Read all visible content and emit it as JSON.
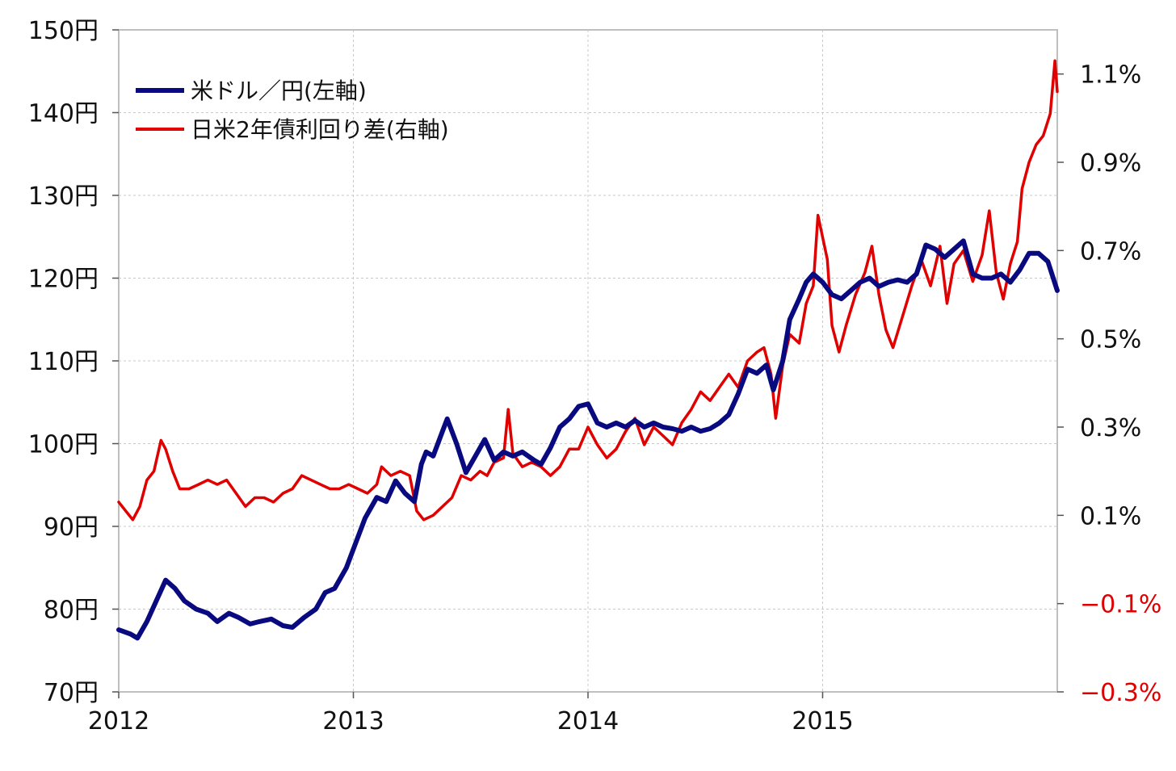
{
  "chart_data": {
    "type": "line",
    "x_ticks": [
      "2012",
      "2013",
      "2014",
      "2015"
    ],
    "x_range": [
      2012.0,
      2016.0
    ],
    "left_axis": {
      "ylim": [
        70,
        150
      ],
      "ticks": [
        {
          "value": 70,
          "label": "70円"
        },
        {
          "value": 80,
          "label": "80円"
        },
        {
          "value": 90,
          "label": "90円"
        },
        {
          "value": 100,
          "label": "100円"
        },
        {
          "value": 110,
          "label": "110円"
        },
        {
          "value": 120,
          "label": "120円"
        },
        {
          "value": 130,
          "label": "130円"
        },
        {
          "value": 140,
          "label": "140円"
        },
        {
          "value": 150,
          "label": "150円"
        }
      ]
    },
    "right_axis": {
      "ylim": [
        -0.3,
        1.2
      ],
      "ticks": [
        {
          "value": -0.3,
          "label": "−0.3%",
          "color": "#e00000"
        },
        {
          "value": -0.1,
          "label": "−0.1%",
          "color": "#e00000"
        },
        {
          "value": 0.1,
          "label": "0.1%",
          "color": "#111111"
        },
        {
          "value": 0.3,
          "label": "0.3%",
          "color": "#111111"
        },
        {
          "value": 0.5,
          "label": "0.5%",
          "color": "#111111"
        },
        {
          "value": 0.7,
          "label": "0.7%",
          "color": "#111111"
        },
        {
          "value": 0.9,
          "label": "0.9%",
          "color": "#111111"
        },
        {
          "value": 1.1,
          "label": "1.1%",
          "color": "#111111"
        }
      ]
    },
    "grid": true,
    "legend": "top-left",
    "series": [
      {
        "name": "米ドル／円(左軸)",
        "axis": "left",
        "color": "#0a0a80",
        "points": [
          [
            2012.0,
            77.5
          ],
          [
            2012.05,
            77.0
          ],
          [
            2012.08,
            76.5
          ],
          [
            2012.12,
            78.5
          ],
          [
            2012.16,
            81.0
          ],
          [
            2012.2,
            83.5
          ],
          [
            2012.24,
            82.5
          ],
          [
            2012.28,
            81.0
          ],
          [
            2012.33,
            80.0
          ],
          [
            2012.38,
            79.5
          ],
          [
            2012.42,
            78.5
          ],
          [
            2012.47,
            79.5
          ],
          [
            2012.51,
            79.0
          ],
          [
            2012.56,
            78.2
          ],
          [
            2012.6,
            78.5
          ],
          [
            2012.65,
            78.8
          ],
          [
            2012.7,
            78.0
          ],
          [
            2012.74,
            77.8
          ],
          [
            2012.79,
            79.0
          ],
          [
            2012.84,
            80.0
          ],
          [
            2012.88,
            82.0
          ],
          [
            2012.92,
            82.5
          ],
          [
            2012.97,
            85.0
          ],
          [
            2013.01,
            88.0
          ],
          [
            2013.05,
            91.0
          ],
          [
            2013.1,
            93.5
          ],
          [
            2013.14,
            93.0
          ],
          [
            2013.18,
            95.5
          ],
          [
            2013.22,
            94.0
          ],
          [
            2013.26,
            93.0
          ],
          [
            2013.29,
            97.5
          ],
          [
            2013.31,
            99.0
          ],
          [
            2013.34,
            98.5
          ],
          [
            2013.38,
            101.5
          ],
          [
            2013.4,
            103.0
          ],
          [
            2013.44,
            100.0
          ],
          [
            2013.48,
            96.5
          ],
          [
            2013.52,
            98.5
          ],
          [
            2013.56,
            100.5
          ],
          [
            2013.6,
            98.0
          ],
          [
            2013.64,
            99.0
          ],
          [
            2013.68,
            98.5
          ],
          [
            2013.72,
            99.0
          ],
          [
            2013.77,
            98.0
          ],
          [
            2013.8,
            97.5
          ],
          [
            2013.84,
            99.5
          ],
          [
            2013.88,
            102.0
          ],
          [
            2013.92,
            103.0
          ],
          [
            2013.96,
            104.5
          ],
          [
            2014.0,
            104.8
          ],
          [
            2014.04,
            102.5
          ],
          [
            2014.08,
            102.0
          ],
          [
            2014.12,
            102.5
          ],
          [
            2014.16,
            102.0
          ],
          [
            2014.2,
            102.8
          ],
          [
            2014.24,
            102.0
          ],
          [
            2014.28,
            102.5
          ],
          [
            2014.32,
            102.0
          ],
          [
            2014.36,
            101.8
          ],
          [
            2014.4,
            101.5
          ],
          [
            2014.44,
            102.0
          ],
          [
            2014.48,
            101.5
          ],
          [
            2014.52,
            101.8
          ],
          [
            2014.56,
            102.5
          ],
          [
            2014.6,
            103.5
          ],
          [
            2014.64,
            106.0
          ],
          [
            2014.68,
            109.0
          ],
          [
            2014.72,
            108.5
          ],
          [
            2014.76,
            109.5
          ],
          [
            2014.79,
            106.5
          ],
          [
            2014.83,
            110.0
          ],
          [
            2014.86,
            115.0
          ],
          [
            2014.9,
            117.5
          ],
          [
            2014.93,
            119.5
          ],
          [
            2014.96,
            120.5
          ],
          [
            2015.0,
            119.5
          ],
          [
            2015.04,
            118.0
          ],
          [
            2015.08,
            117.5
          ],
          [
            2015.12,
            118.5
          ],
          [
            2015.16,
            119.5
          ],
          [
            2015.2,
            120.0
          ],
          [
            2015.24,
            119.0
          ],
          [
            2015.28,
            119.5
          ],
          [
            2015.32,
            119.8
          ],
          [
            2015.36,
            119.5
          ],
          [
            2015.4,
            120.5
          ],
          [
            2015.44,
            124.0
          ],
          [
            2015.48,
            123.5
          ],
          [
            2015.52,
            122.5
          ],
          [
            2015.56,
            123.5
          ],
          [
            2015.6,
            124.5
          ],
          [
            2015.64,
            120.5
          ],
          [
            2015.68,
            120.0
          ],
          [
            2015.72,
            120.0
          ],
          [
            2015.76,
            120.5
          ],
          [
            2015.8,
            119.5
          ],
          [
            2015.84,
            121.0
          ],
          [
            2015.88,
            123.0
          ],
          [
            2015.92,
            123.0
          ],
          [
            2015.96,
            122.0
          ],
          [
            2016.0,
            118.5
          ]
        ]
      },
      {
        "name": "日米2年債利回り差(右軸)",
        "axis": "right",
        "color": "#e00000",
        "points": [
          [
            2012.0,
            0.13
          ],
          [
            2012.03,
            0.11
          ],
          [
            2012.06,
            0.09
          ],
          [
            2012.09,
            0.12
          ],
          [
            2012.12,
            0.18
          ],
          [
            2012.15,
            0.2
          ],
          [
            2012.18,
            0.27
          ],
          [
            2012.2,
            0.25
          ],
          [
            2012.23,
            0.2
          ],
          [
            2012.26,
            0.16
          ],
          [
            2012.3,
            0.16
          ],
          [
            2012.34,
            0.17
          ],
          [
            2012.38,
            0.18
          ],
          [
            2012.42,
            0.17
          ],
          [
            2012.46,
            0.18
          ],
          [
            2012.5,
            0.15
          ],
          [
            2012.54,
            0.12
          ],
          [
            2012.58,
            0.14
          ],
          [
            2012.62,
            0.14
          ],
          [
            2012.66,
            0.13
          ],
          [
            2012.7,
            0.15
          ],
          [
            2012.74,
            0.16
          ],
          [
            2012.78,
            0.19
          ],
          [
            2012.82,
            0.18
          ],
          [
            2012.86,
            0.17
          ],
          [
            2012.9,
            0.16
          ],
          [
            2012.94,
            0.16
          ],
          [
            2012.98,
            0.17
          ],
          [
            2013.02,
            0.16
          ],
          [
            2013.06,
            0.15
          ],
          [
            2013.1,
            0.17
          ],
          [
            2013.12,
            0.21
          ],
          [
            2013.16,
            0.19
          ],
          [
            2013.2,
            0.2
          ],
          [
            2013.24,
            0.19
          ],
          [
            2013.27,
            0.11
          ],
          [
            2013.3,
            0.09
          ],
          [
            2013.34,
            0.1
          ],
          [
            2013.38,
            0.12
          ],
          [
            2013.42,
            0.14
          ],
          [
            2013.46,
            0.19
          ],
          [
            2013.5,
            0.18
          ],
          [
            2013.54,
            0.2
          ],
          [
            2013.57,
            0.19
          ],
          [
            2013.6,
            0.22
          ],
          [
            2013.64,
            0.23
          ],
          [
            2013.66,
            0.34
          ],
          [
            2013.68,
            0.24
          ],
          [
            2013.72,
            0.21
          ],
          [
            2013.76,
            0.22
          ],
          [
            2013.8,
            0.21
          ],
          [
            2013.84,
            0.19
          ],
          [
            2013.88,
            0.21
          ],
          [
            2013.92,
            0.25
          ],
          [
            2013.96,
            0.25
          ],
          [
            2014.0,
            0.3
          ],
          [
            2014.04,
            0.26
          ],
          [
            2014.08,
            0.23
          ],
          [
            2014.12,
            0.25
          ],
          [
            2014.16,
            0.29
          ],
          [
            2014.2,
            0.32
          ],
          [
            2014.24,
            0.26
          ],
          [
            2014.28,
            0.3
          ],
          [
            2014.32,
            0.28
          ],
          [
            2014.36,
            0.26
          ],
          [
            2014.4,
            0.31
          ],
          [
            2014.44,
            0.34
          ],
          [
            2014.48,
            0.38
          ],
          [
            2014.52,
            0.36
          ],
          [
            2014.56,
            0.39
          ],
          [
            2014.6,
            0.42
          ],
          [
            2014.64,
            0.39
          ],
          [
            2014.68,
            0.45
          ],
          [
            2014.72,
            0.47
          ],
          [
            2014.75,
            0.48
          ],
          [
            2014.78,
            0.42
          ],
          [
            2014.8,
            0.32
          ],
          [
            2014.83,
            0.44
          ],
          [
            2014.86,
            0.51
          ],
          [
            2014.9,
            0.49
          ],
          [
            2014.93,
            0.58
          ],
          [
            2014.96,
            0.62
          ],
          [
            2014.98,
            0.78
          ],
          [
            2015.02,
            0.68
          ],
          [
            2015.04,
            0.53
          ],
          [
            2015.07,
            0.47
          ],
          [
            2015.1,
            0.53
          ],
          [
            2015.14,
            0.6
          ],
          [
            2015.18,
            0.65
          ],
          [
            2015.21,
            0.71
          ],
          [
            2015.24,
            0.6
          ],
          [
            2015.27,
            0.52
          ],
          [
            2015.3,
            0.48
          ],
          [
            2015.34,
            0.55
          ],
          [
            2015.38,
            0.62
          ],
          [
            2015.42,
            0.68
          ],
          [
            2015.46,
            0.62
          ],
          [
            2015.5,
            0.71
          ],
          [
            2015.53,
            0.58
          ],
          [
            2015.56,
            0.67
          ],
          [
            2015.6,
            0.7
          ],
          [
            2015.64,
            0.63
          ],
          [
            2015.68,
            0.69
          ],
          [
            2015.71,
            0.79
          ],
          [
            2015.74,
            0.65
          ],
          [
            2015.77,
            0.59
          ],
          [
            2015.8,
            0.67
          ],
          [
            2015.83,
            0.72
          ],
          [
            2015.85,
            0.84
          ],
          [
            2015.88,
            0.9
          ],
          [
            2015.91,
            0.94
          ],
          [
            2015.94,
            0.96
          ],
          [
            2015.97,
            1.01
          ],
          [
            2015.99,
            1.13
          ],
          [
            2016.0,
            1.06
          ]
        ]
      }
    ]
  }
}
